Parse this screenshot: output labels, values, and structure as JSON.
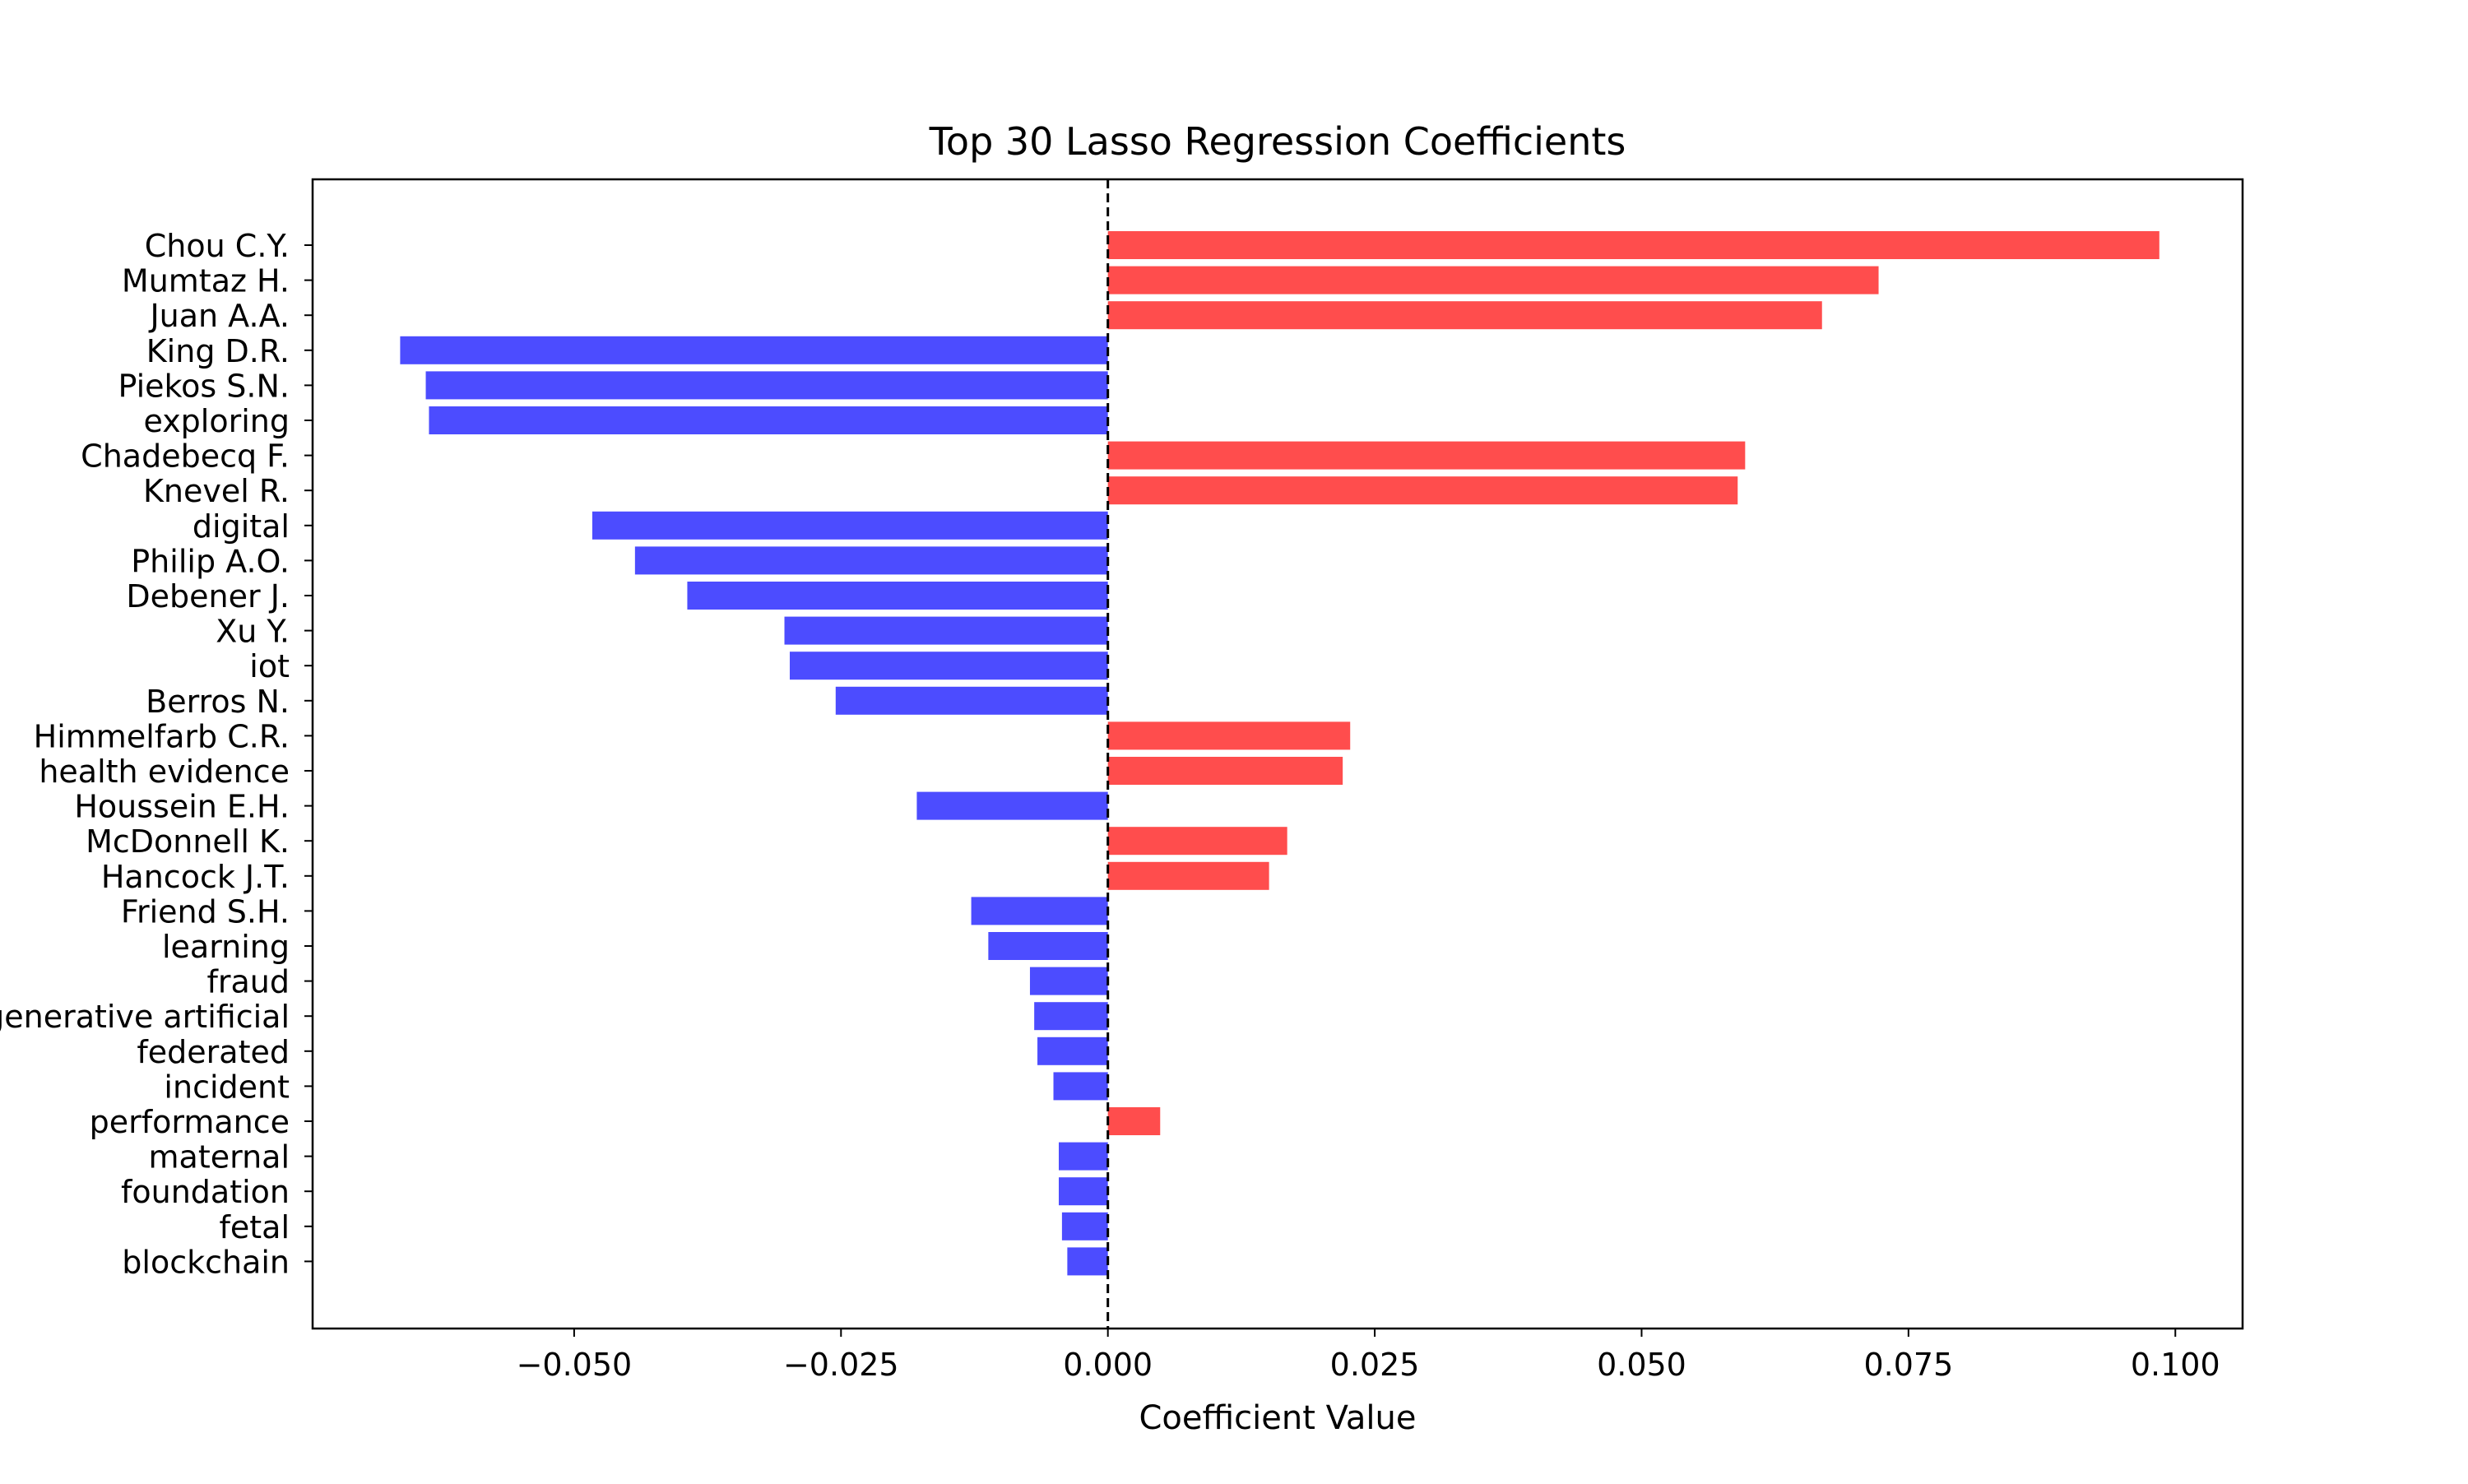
{
  "chart_data": {
    "type": "bar",
    "orientation": "horizontal",
    "title": "Top 30 Lasso Regression Coefficients",
    "xlabel": "Coefficient Value",
    "ylabel": "",
    "xlim": [
      -0.0745,
      0.1063
    ],
    "xticks": [
      -0.05,
      -0.025,
      0.0,
      0.025,
      0.05,
      0.075,
      0.1
    ],
    "xtick_labels": [
      "−0.050",
      "−0.025",
      "0.000",
      "0.025",
      "0.050",
      "0.075",
      "0.100"
    ],
    "grid": false,
    "reference_line": {
      "x": 0.0,
      "style": "dashed",
      "color": "#000000"
    },
    "colors": {
      "positive": "#ff4d4d",
      "negative": "#4c4cff"
    },
    "categories": [
      "Chou C.Y.",
      "Mumtaz H.",
      "Juan A.A.",
      "King D.R.",
      "Piekos S.N.",
      "exploring",
      "Chadebecq F.",
      "Knevel R.",
      "digital",
      "Philip A.O.",
      "Debener J.",
      "Xu Y.",
      "iot",
      "Berros N.",
      "Himmelfarb C.R.",
      "health evidence",
      "Houssein E.H.",
      "McDonnell K.",
      "Hancock J.T.",
      "Friend S.H.",
      "learning",
      "fraud",
      "generative artificial",
      "federated",
      "incident",
      "performance",
      "maternal",
      "foundation",
      "fetal",
      "blockchain"
    ],
    "values": [
      0.0985,
      0.0722,
      0.0669,
      -0.0663,
      -0.0639,
      -0.0636,
      0.0597,
      0.059,
      -0.0483,
      -0.0443,
      -0.0394,
      -0.0303,
      -0.0298,
      -0.0255,
      0.0227,
      0.022,
      -0.0179,
      0.0168,
      0.0151,
      -0.0128,
      -0.0112,
      -0.0073,
      -0.0069,
      -0.0066,
      -0.0051,
      0.0049,
      -0.0046,
      -0.0046,
      -0.0043,
      -0.0038
    ]
  }
}
